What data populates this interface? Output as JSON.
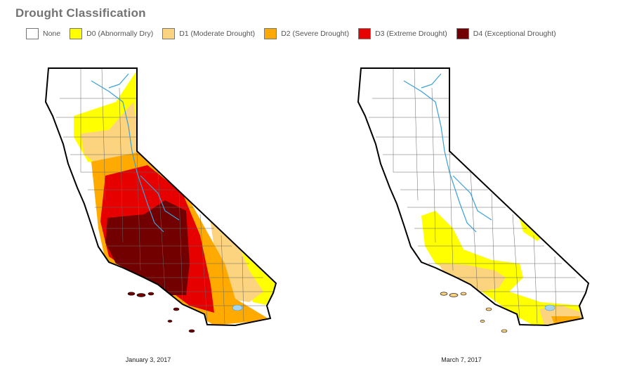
{
  "title": "Drought Classification",
  "legend": [
    {
      "label": "None",
      "color": "#ffffff"
    },
    {
      "label": "D0 (Abnormally Dry)",
      "color": "#ffff00"
    },
    {
      "label": "D1 (Moderate Drought)",
      "color": "#fcd37f"
    },
    {
      "label": "D2 (Severe Drought)",
      "color": "#ffaa00"
    },
    {
      "label": "D3 (Extreme Drought)",
      "color": "#e60000"
    },
    {
      "label": "D4 (Exceptional Drought)",
      "color": "#730000"
    }
  ],
  "maps": [
    {
      "date": "January 3, 2017"
    },
    {
      "date": "March 7, 2017"
    }
  ],
  "colors": {
    "outline": "#000000",
    "county": "#666666",
    "river": "#3a9fd8",
    "lake": "#a6d3ee"
  }
}
